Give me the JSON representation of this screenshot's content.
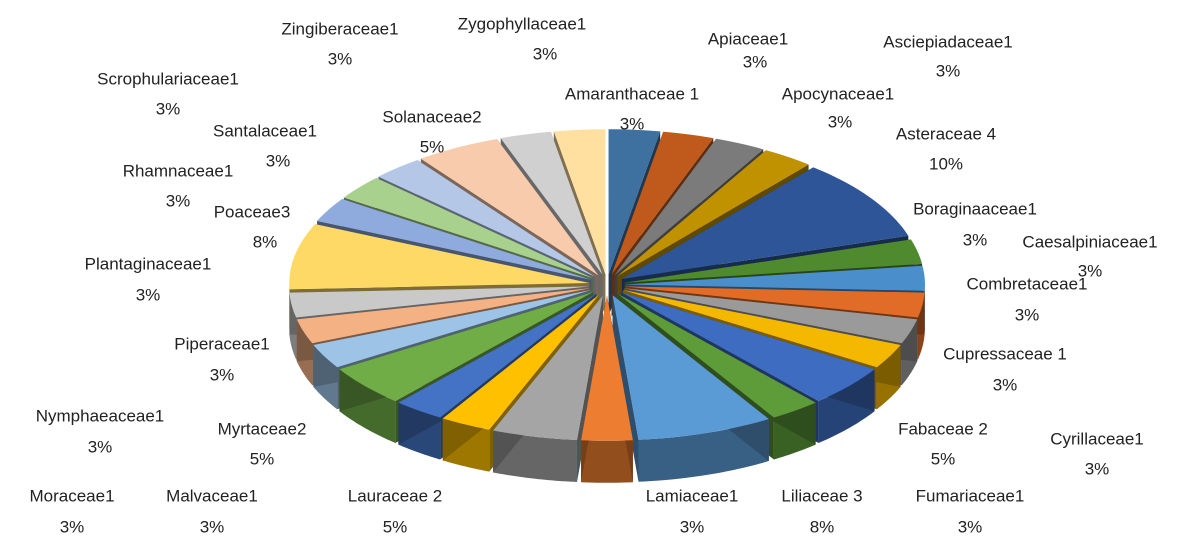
{
  "chart_data": {
    "type": "pie",
    "categories": [
      "Amaranthaceae 1",
      "Apiaceae1",
      "Apocynaceae1",
      "Asciepiadaceae1",
      "Asteraceae 4",
      "Boraginaaceae1",
      "Caesalpiniaceae1",
      "Combretaceae1",
      "Cupressaceae 1",
      "Cyrillaceae1",
      "Fabaceae 2",
      "Fumariaceae1",
      "Liliaceae 3",
      "Lamiaceae1",
      "Lauraceae 2",
      "Malvaceae1",
      "Moraceae1",
      "Myrtaceae2",
      "Nymphaeaceae1",
      "Piperaceae1",
      "Plantaginaceae1",
      "Poaceae3",
      "Rhamnaceae1",
      "Santalaceae1",
      "Scrophulariaceae1",
      "Solanaceae2",
      "Zingiberaceae1",
      "Zygophyllaceae1"
    ],
    "values": [
      3,
      3,
      3,
      3,
      10,
      3,
      3,
      3,
      3,
      3,
      5,
      3,
      8,
      3,
      5,
      3,
      3,
      5,
      3,
      3,
      3,
      8,
      3,
      3,
      3,
      5,
      3,
      3
    ],
    "value_labels": [
      "3%",
      "3%",
      "3%",
      "3%",
      "10%",
      "3%",
      "3%",
      "3%",
      "3%",
      "3%",
      "5%",
      "3%",
      "8%",
      "3%",
      "5%",
      "3%",
      "3%",
      "5%",
      "3%",
      "3%",
      "3%",
      "8%",
      "3%",
      "3%",
      "3%",
      "5%",
      "3%",
      "3%"
    ],
    "colors": [
      "#3e70a0",
      "#c05a1c",
      "#7b7b7b",
      "#c09200",
      "#2e5597",
      "#4f8a2e",
      "#4a8fcc",
      "#e06c28",
      "#9a9a9a",
      "#f5b800",
      "#3d6cc0",
      "#5e9c3a",
      "#5b9bd5",
      "#ed7d31",
      "#a5a5a5",
      "#ffc000",
      "#4472c4",
      "#70ad47",
      "#9dc3e6",
      "#f4b183",
      "#c9c9c9",
      "#ffd966",
      "#8faadc",
      "#a9d18e",
      "#b4c7e7",
      "#f8cbad",
      "#d0d0d0",
      "#ffe0a0"
    ]
  }
}
